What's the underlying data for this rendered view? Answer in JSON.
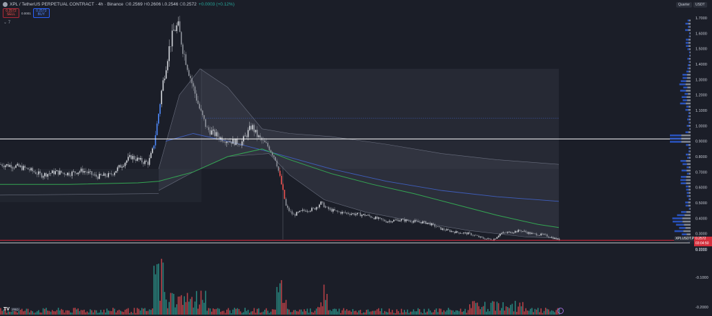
{
  "header": {
    "symbol": "XPL",
    "title": "XPL / TetherUS PERPETUAL CONTRACT · 4h · Binance",
    "open_label": "O",
    "open": "0.2569",
    "high_label": "H",
    "high": "0.2606",
    "low_label": "L",
    "low": "0.2546",
    "close_label": "C",
    "close": "0.2572",
    "change": "+0.0003 (+0.12%)"
  },
  "trade": {
    "sell_price": "0.2572",
    "sell_label": "SELL",
    "spread": "0.0001",
    "buy_price": "0.2573",
    "buy_label": "BUY"
  },
  "indicator_toggle": "⌄ 7",
  "top_right": {
    "period": "Quarter",
    "currency": "USDT"
  },
  "price_tag": {
    "symbol": "XPLUSDT.P",
    "price": "0.2572",
    "countdown": "03:04:50"
  },
  "footer": {
    "logo": "TV",
    "badge": "PRO"
  },
  "colors": {
    "background": "#1b1e28",
    "up": "#26a69a",
    "down": "#ef5350",
    "candle_up": "#d4d7dd",
    "candle_down": "#8f939c",
    "blue": "#2962ff",
    "green_ma": "#34a853",
    "band": "#3a3e4a",
    "white_line": "#ffffff",
    "red_line": "#e0283c"
  },
  "chart_data": {
    "type": "candlestick",
    "price_axis": {
      "min": 0.2,
      "max": 1.75,
      "ticks": [
        "1.7000",
        "1.6000",
        "1.5000",
        "1.4000",
        "1.3000",
        "1.2000",
        "1.1000",
        "1.0000",
        "0.9000",
        "0.8000",
        "0.7000",
        "0.6000",
        "0.5000",
        "0.4000",
        "0.3000",
        "0.2000"
      ]
    },
    "volume_axis": {
      "ticks": [
        "0.1000",
        "-0.1000",
        "-0.2000"
      ]
    },
    "horizontal_lines": [
      0.915,
      0.257
    ],
    "current_price": 0.2572,
    "price_path": [
      [
        0,
        0.75
      ],
      [
        20,
        0.74
      ],
      [
        40,
        0.72
      ],
      [
        60,
        0.68
      ],
      [
        80,
        0.7
      ],
      [
        100,
        0.69
      ],
      [
        120,
        0.71
      ],
      [
        140,
        0.67
      ],
      [
        160,
        0.68
      ],
      [
        175,
        0.74
      ],
      [
        190,
        0.8
      ],
      [
        205,
        0.77
      ],
      [
        215,
        0.76
      ],
      [
        222,
        0.85
      ],
      [
        228,
        1.02
      ],
      [
        235,
        1.25
      ],
      [
        245,
        1.5
      ],
      [
        252,
        1.62
      ],
      [
        258,
        1.65
      ],
      [
        265,
        1.5
      ],
      [
        272,
        1.38
      ],
      [
        280,
        1.25
      ],
      [
        290,
        1.1
      ],
      [
        300,
        0.98
      ],
      [
        310,
        0.95
      ],
      [
        320,
        0.92
      ],
      [
        335,
        0.9
      ],
      [
        350,
        0.89
      ],
      [
        365,
        1.0
      ],
      [
        372,
        0.94
      ],
      [
        380,
        0.9
      ],
      [
        390,
        0.86
      ],
      [
        400,
        0.78
      ],
      [
        408,
        0.62
      ],
      [
        415,
        0.47
      ],
      [
        425,
        0.42
      ],
      [
        440,
        0.45
      ],
      [
        455,
        0.46
      ],
      [
        465,
        0.5
      ],
      [
        475,
        0.46
      ],
      [
        490,
        0.44
      ],
      [
        510,
        0.43
      ],
      [
        530,
        0.42
      ],
      [
        545,
        0.4
      ],
      [
        560,
        0.38
      ],
      [
        580,
        0.39
      ],
      [
        600,
        0.38
      ],
      [
        620,
        0.37
      ],
      [
        640,
        0.33
      ],
      [
        660,
        0.31
      ],
      [
        680,
        0.3
      ],
      [
        700,
        0.27
      ],
      [
        715,
        0.26
      ],
      [
        725,
        0.3
      ],
      [
        740,
        0.31
      ],
      [
        755,
        0.32
      ],
      [
        770,
        0.3
      ],
      [
        790,
        0.29
      ],
      [
        810,
        0.26
      ]
    ],
    "ma_green": [
      [
        0,
        0.62
      ],
      [
        100,
        0.62
      ],
      [
        200,
        0.63
      ],
      [
        230,
        0.64
      ],
      [
        280,
        0.7
      ],
      [
        330,
        0.8
      ],
      [
        380,
        0.85
      ],
      [
        420,
        0.78
      ],
      [
        480,
        0.69
      ],
      [
        540,
        0.62
      ],
      [
        600,
        0.56
      ],
      [
        660,
        0.49
      ],
      [
        720,
        0.42
      ],
      [
        780,
        0.36
      ],
      [
        810,
        0.34
      ]
    ],
    "vwap_blue": [
      [
        240,
        0.9
      ],
      [
        280,
        0.95
      ],
      [
        330,
        0.9
      ],
      [
        400,
        0.82
      ],
      [
        480,
        0.72
      ],
      [
        560,
        0.64
      ],
      [
        640,
        0.58
      ],
      [
        720,
        0.54
      ],
      [
        810,
        0.51
      ]
    ],
    "volume_profile_levels": 70
  }
}
